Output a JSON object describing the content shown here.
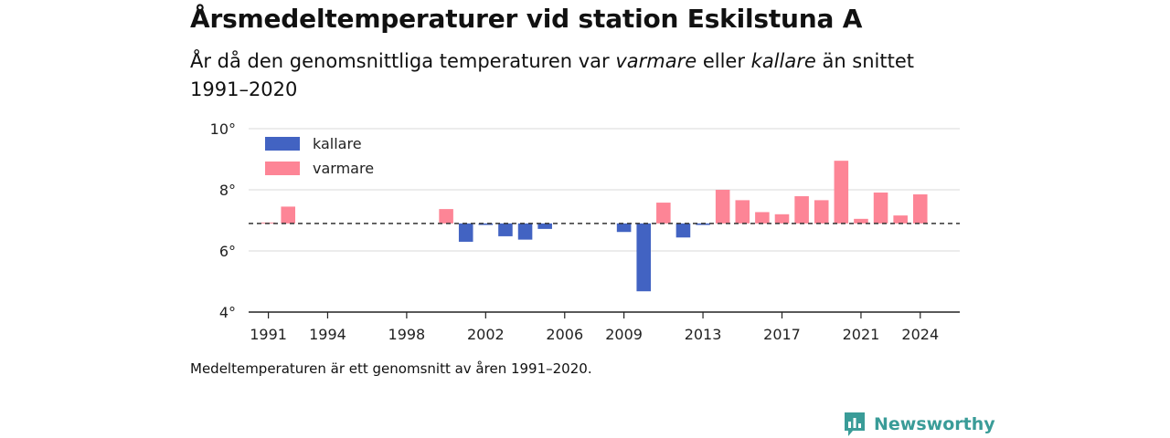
{
  "header": {
    "title": "Årsmedeltemperaturer vid station Eskilstuna A",
    "subtitle_pre": "År då den genomsnittliga temperaturen var ",
    "subtitle_em1": "varmare",
    "subtitle_mid": " eller ",
    "subtitle_em2": "kallare",
    "subtitle_post": " än snittet 1991–2020"
  },
  "footer": {
    "note": "Medeltemperaturen är ett genomsnitt av åren 1991–2020.",
    "brand": "Newsworthy"
  },
  "colors": {
    "kallare": "#4263c2",
    "varmare": "#fd8596",
    "brand": "#3a9c98"
  },
  "chart_data": {
    "type": "bar",
    "baseline": 6.9,
    "ylim": [
      4,
      10
    ],
    "yticks": [
      4,
      6,
      8,
      10
    ],
    "ytick_labels": [
      "4°",
      "6°",
      "8°",
      "10°"
    ],
    "xlim": [
      1990,
      2026
    ],
    "xticks": [
      1991,
      1994,
      1998,
      2002,
      2006,
      2009,
      2013,
      2017,
      2021,
      2024
    ],
    "legend": [
      {
        "key": "kallare",
        "label": "kallare"
      },
      {
        "key": "varmare",
        "label": "varmare"
      }
    ],
    "legend_position": "top-left",
    "grid": true,
    "years": [
      1991,
      1992,
      2000,
      2001,
      2002,
      2003,
      2004,
      2005,
      2009,
      2010,
      2011,
      2012,
      2013,
      2014,
      2015,
      2016,
      2017,
      2018,
      2019,
      2020,
      2021,
      2022,
      2023,
      2024
    ],
    "values": [
      6.93,
      7.45,
      7.37,
      6.3,
      6.85,
      6.48,
      6.37,
      6.72,
      6.62,
      4.68,
      7.58,
      6.44,
      6.85,
      8.0,
      7.66,
      7.27,
      7.2,
      7.79,
      7.66,
      8.95,
      7.05,
      7.91,
      7.16,
      7.85
    ]
  }
}
